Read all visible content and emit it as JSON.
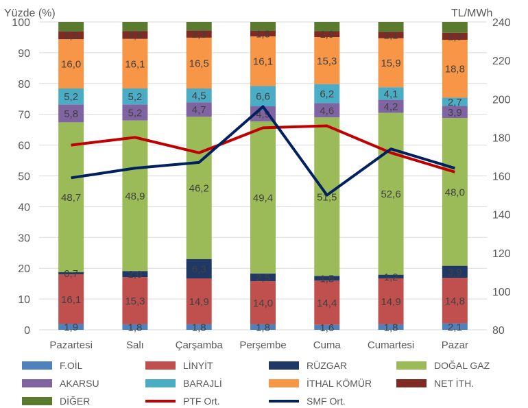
{
  "chart_data": {
    "type": "bar",
    "stacked": true,
    "left_axis_label": "Yüzde (%)",
    "right_axis_label": "TL/MWh",
    "ylim_left": [
      0,
      100
    ],
    "ylim_right": [
      80,
      240
    ],
    "y_ticks_left": [
      "0",
      "10",
      "20",
      "30",
      "40",
      "50",
      "60",
      "70",
      "80",
      "90",
      "100"
    ],
    "y_ticks_right": [
      "80",
      "100",
      "120",
      "140",
      "160",
      "180",
      "200",
      "220",
      "240"
    ],
    "grid": true,
    "legend_position": "bottom",
    "categories": [
      "Pazartesi",
      "Salı",
      "Çarşamba",
      "Perşembe",
      "Cuma",
      "Cumartesi",
      "Pazar"
    ],
    "series": [
      {
        "name": "F.OİL",
        "color": "#4f81bd",
        "values": [
          1.9,
          1.8,
          1.8,
          1.8,
          1.6,
          1.8,
          2.1
        ],
        "labels": [
          "1,9",
          "1,8",
          "1,8",
          "1,8",
          "1,6",
          "1,8",
          "2,1"
        ]
      },
      {
        "name": "LİNYİT",
        "color": "#c0504d",
        "values": [
          16.1,
          15.3,
          14.9,
          14.0,
          14.4,
          14.9,
          14.8
        ],
        "labels": [
          "16,1",
          "15,3",
          "14,9",
          "14,0",
          "14,4",
          "14,9",
          "14,8"
        ]
      },
      {
        "name": "RÜZGAR",
        "color": "#1f3864",
        "values": [
          0.7,
          2.0,
          6.3,
          2.5,
          1.5,
          1.2,
          3.9
        ],
        "labels": [
          "0,7",
          "2,0",
          "6,3",
          "2,5",
          "1,5",
          "1,2",
          "3,9"
        ]
      },
      {
        "name": "DOĞAL GAZ",
        "color": "#9bbb59",
        "values": [
          48.7,
          48.9,
          46.2,
          49.4,
          51.5,
          52.6,
          48.0
        ],
        "labels": [
          "48,7",
          "48,9",
          "46,2",
          "49,4",
          "51,5",
          "52,6",
          "48,0"
        ]
      },
      {
        "name": "AKARSU",
        "color": "#8064a2",
        "values": [
          5.8,
          5.2,
          4.7,
          4.9,
          4.6,
          4.2,
          3.9
        ],
        "labels": [
          "5,8",
          "5,2",
          "4,7",
          "4,9",
          "4,6",
          "4,2",
          "3,9"
        ]
      },
      {
        "name": "BARAJLİ",
        "color": "#4bacc6",
        "values": [
          5.2,
          5.2,
          4.5,
          6.6,
          6.2,
          4.1,
          2.7
        ],
        "labels": [
          "5,2",
          "5,2",
          "4,5",
          "6,6",
          "6,2",
          "4,1",
          "2,7"
        ]
      },
      {
        "name": "İTHAL KÖMÜR",
        "color": "#f79646",
        "values": [
          16.0,
          16.1,
          16.5,
          16.1,
          15.3,
          15.9,
          18.8
        ],
        "labels": [
          "16,0",
          "16,1",
          "16,5",
          "16,1",
          "15,3",
          "15,9",
          "18,8"
        ]
      },
      {
        "name": "NET İTH.",
        "color": "#7f2b24",
        "values": [
          2.5,
          2.5,
          2.3,
          1.8,
          1.9,
          2.1,
          2.3
        ],
        "labels": [
          "2,5",
          "2,5",
          "2,3",
          "1,8",
          "1,9",
          "2,1",
          "2,3"
        ]
      },
      {
        "name": "DİĞER",
        "color": "#5a7b2e",
        "values": [
          3.1,
          3.0,
          2.8,
          2.9,
          3.0,
          3.2,
          3.5
        ],
        "labels": null
      }
    ],
    "lines": [
      {
        "name": "PTF Ort.",
        "color": "#c00000",
        "axis": "right",
        "values": [
          176,
          180,
          172,
          185,
          186,
          172,
          162
        ]
      },
      {
        "name": "SMF Ort.",
        "color": "#002060",
        "axis": "right",
        "values": [
          159,
          164,
          167,
          196,
          150,
          174,
          164
        ]
      }
    ]
  }
}
